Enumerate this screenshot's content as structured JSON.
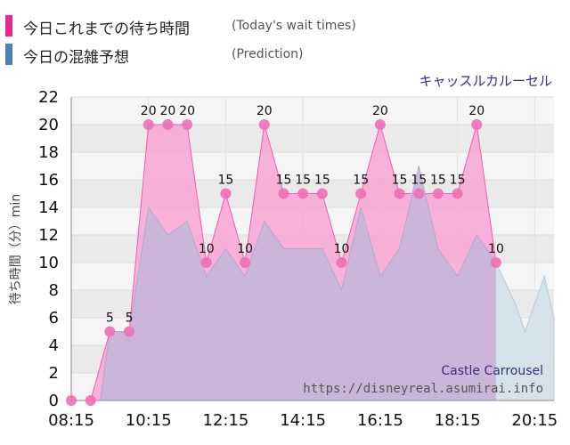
{
  "legend": {
    "today_label": "今日これまでの待ち時間",
    "today_sub": "(Today's wait times)",
    "prediction_label": "今日の混雑予想",
    "prediction_sub": "(Prediction)"
  },
  "attraction_jp": "キャッスルカルーセル",
  "watermark": {
    "name": "Castle Carrousel",
    "url": "https://disneyreal.asumirai.info"
  },
  "colors": {
    "today_swatch": "#e8288f",
    "prediction_swatch": "#4a82b8",
    "today_fill": "#f8a6d4",
    "today_line": "#ee5fae",
    "today_marker": "#ef6fb5",
    "prediction_fill": "#c3b6d8",
    "prediction_tail_fill": "#d4e2ea",
    "plot_band_light": "#f5f5f5",
    "plot_band_dark": "#eaeaea"
  },
  "chart_data": {
    "type": "area",
    "ylabel": "待ち時間（分）min",
    "ylim": [
      0,
      22
    ],
    "yticks": [
      0,
      2,
      4,
      6,
      8,
      10,
      12,
      14,
      16,
      18,
      20,
      22
    ],
    "xticks": [
      "08:15",
      "10:15",
      "12:15",
      "14:15",
      "16:15",
      "18:15",
      "20:15"
    ],
    "x_range": [
      "08:15",
      "20:45"
    ],
    "series": [
      {
        "name": "今日これまでの待ち時間",
        "points": [
          {
            "x": "08:15",
            "y": 0
          },
          {
            "x": "08:45",
            "y": 0
          },
          {
            "x": "09:15",
            "y": 5,
            "label": "5"
          },
          {
            "x": "09:45",
            "y": 5,
            "label": "5"
          },
          {
            "x": "10:15",
            "y": 20,
            "label": "20"
          },
          {
            "x": "10:45",
            "y": 20,
            "label": "20"
          },
          {
            "x": "11:15",
            "y": 20,
            "label": "20"
          },
          {
            "x": "11:45",
            "y": 10,
            "label": "10"
          },
          {
            "x": "12:15",
            "y": 15,
            "label": "15"
          },
          {
            "x": "12:45",
            "y": 10,
            "label": "10"
          },
          {
            "x": "13:15",
            "y": 20,
            "label": "20"
          },
          {
            "x": "13:45",
            "y": 15,
            "label": "15"
          },
          {
            "x": "14:15",
            "y": 15,
            "label": "15"
          },
          {
            "x": "14:45",
            "y": 15,
            "label": "15"
          },
          {
            "x": "15:15",
            "y": 10,
            "label": "10"
          },
          {
            "x": "15:45",
            "y": 15,
            "label": "15"
          },
          {
            "x": "16:15",
            "y": 20,
            "label": "20"
          },
          {
            "x": "16:45",
            "y": 15,
            "label": "15"
          },
          {
            "x": "17:15",
            "y": 15,
            "label": "15"
          },
          {
            "x": "17:45",
            "y": 15,
            "label": "15"
          },
          {
            "x": "18:15",
            "y": 15,
            "label": "15"
          },
          {
            "x": "18:45",
            "y": 20,
            "label": "20"
          },
          {
            "x": "19:15",
            "y": 10,
            "label": "10"
          }
        ]
      },
      {
        "name": "今日の混雑予想",
        "points": [
          {
            "x": "08:15",
            "y": 0
          },
          {
            "x": "09:00",
            "y": 0
          },
          {
            "x": "09:15",
            "y": 5
          },
          {
            "x": "09:45",
            "y": 5
          },
          {
            "x": "10:15",
            "y": 14
          },
          {
            "x": "10:45",
            "y": 12
          },
          {
            "x": "11:15",
            "y": 13
          },
          {
            "x": "11:45",
            "y": 9
          },
          {
            "x": "12:15",
            "y": 11
          },
          {
            "x": "12:45",
            "y": 9
          },
          {
            "x": "13:15",
            "y": 13
          },
          {
            "x": "13:45",
            "y": 11
          },
          {
            "x": "14:15",
            "y": 11
          },
          {
            "x": "14:45",
            "y": 11
          },
          {
            "x": "15:15",
            "y": 8
          },
          {
            "x": "15:45",
            "y": 14
          },
          {
            "x": "16:15",
            "y": 9
          },
          {
            "x": "16:45",
            "y": 11
          },
          {
            "x": "17:15",
            "y": 17
          },
          {
            "x": "17:45",
            "y": 11
          },
          {
            "x": "18:15",
            "y": 9
          },
          {
            "x": "18:45",
            "y": 12
          },
          {
            "x": "19:15",
            "y": 10
          },
          {
            "x": "19:45",
            "y": 7
          },
          {
            "x": "20:00",
            "y": 5
          },
          {
            "x": "20:30",
            "y": 9
          },
          {
            "x": "20:45",
            "y": 6
          }
        ]
      }
    ],
    "grid": true
  }
}
